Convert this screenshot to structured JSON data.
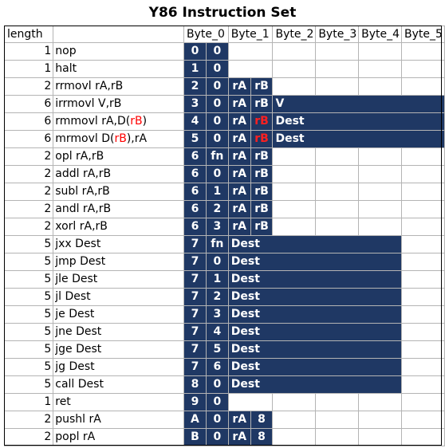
{
  "title": "Y86 Instruction Set",
  "headers": {
    "length": "length",
    "bytes": [
      "Byte_0",
      "Byte_1",
      "Byte_2",
      "Byte_3",
      "Byte_4",
      "Byte_5"
    ]
  },
  "fill_color": "#1f3864",
  "rows": [
    {
      "length": "1",
      "instr": [
        {
          "t": "nop"
        }
      ],
      "half": [
        "0",
        "0"
      ],
      "fill_until": 1
    },
    {
      "length": "1",
      "instr": [
        {
          "t": "halt"
        }
      ],
      "half": [
        "1",
        "0"
      ],
      "fill_until": 1
    },
    {
      "length": "2",
      "instr": [
        {
          "t": "rrmovl rA,rB"
        }
      ],
      "half": [
        "2",
        "0",
        "rA",
        "rB"
      ],
      "fill_until": 2
    },
    {
      "length": "6",
      "instr": [
        {
          "t": "irrmovl V,rB"
        }
      ],
      "half": [
        "3",
        "0",
        "rA",
        "rB"
      ],
      "spans": [
        {
          "text": "V",
          "cols": 4
        }
      ],
      "fill_until": 6
    },
    {
      "length": "6",
      "instr": [
        {
          "t": "rmmovl rA,D("
        },
        {
          "t": "rB",
          "red": true
        },
        {
          "t": ")"
        }
      ],
      "half": [
        "4",
        "0",
        "rA",
        "rB"
      ],
      "red_half": [
        3
      ],
      "spans": [
        {
          "text": "Dest",
          "cols": 4
        }
      ],
      "fill_until": 6
    },
    {
      "length": "6",
      "instr": [
        {
          "t": "mrmovl D("
        },
        {
          "t": "rB",
          "red": true
        },
        {
          "t": "),rA"
        }
      ],
      "half": [
        "5",
        "0",
        "rA",
        "rB"
      ],
      "red_half": [
        3
      ],
      "spans": [
        {
          "text": "Dest",
          "cols": 4
        }
      ],
      "fill_until": 6
    },
    {
      "length": "2",
      "instr": [
        {
          "t": "opl rA,rB"
        }
      ],
      "half": [
        "6",
        "fn",
        "rA",
        "rB"
      ],
      "fill_until": 2
    },
    {
      "length": "2",
      "instr": [
        {
          "t": "addl rA,rB"
        }
      ],
      "half": [
        "6",
        "0",
        "rA",
        "rB"
      ],
      "fill_until": 2
    },
    {
      "length": "2",
      "instr": [
        {
          "t": "subl rA,rB"
        }
      ],
      "half": [
        "6",
        "1",
        "rA",
        "rB"
      ],
      "fill_until": 2
    },
    {
      "length": "2",
      "instr": [
        {
          "t": "andl rA,rB"
        }
      ],
      "half": [
        "6",
        "2",
        "rA",
        "rB"
      ],
      "fill_until": 2
    },
    {
      "length": "2",
      "instr": [
        {
          "t": "xorl rA,rB"
        }
      ],
      "half": [
        "6",
        "3",
        "rA",
        "rB"
      ],
      "fill_until": 2
    },
    {
      "length": "5",
      "instr": [
        {
          "t": "jxx Dest"
        }
      ],
      "half": [
        "7",
        "fn"
      ],
      "spans": [
        {
          "text": "Dest",
          "cols": 4
        }
      ],
      "fill_until": 5
    },
    {
      "length": "5",
      "instr": [
        {
          "t": "jmp Dest"
        }
      ],
      "half": [
        "7",
        "0"
      ],
      "spans": [
        {
          "text": "Dest",
          "cols": 4
        }
      ],
      "fill_until": 5
    },
    {
      "length": "5",
      "instr": [
        {
          "t": "jle Dest"
        }
      ],
      "half": [
        "7",
        "1"
      ],
      "spans": [
        {
          "text": "Dest",
          "cols": 4
        }
      ],
      "fill_until": 5
    },
    {
      "length": "5",
      "instr": [
        {
          "t": "jl Dest"
        }
      ],
      "half": [
        "7",
        "2"
      ],
      "spans": [
        {
          "text": "Dest",
          "cols": 4
        }
      ],
      "fill_until": 5
    },
    {
      "length": "5",
      "instr": [
        {
          "t": "je Dest"
        }
      ],
      "half": [
        "7",
        "3"
      ],
      "spans": [
        {
          "text": "Dest",
          "cols": 4
        }
      ],
      "fill_until": 5
    },
    {
      "length": "5",
      "instr": [
        {
          "t": "jne Dest"
        }
      ],
      "half": [
        "7",
        "4"
      ],
      "spans": [
        {
          "text": "Dest",
          "cols": 4
        }
      ],
      "fill_until": 5
    },
    {
      "length": "5",
      "instr": [
        {
          "t": "jge Dest"
        }
      ],
      "half": [
        "7",
        "5"
      ],
      "spans": [
        {
          "text": "Dest",
          "cols": 4
        }
      ],
      "fill_until": 5
    },
    {
      "length": "5",
      "instr": [
        {
          "t": "jg Dest"
        }
      ],
      "half": [
        "7",
        "6"
      ],
      "spans": [
        {
          "text": "Dest",
          "cols": 4
        }
      ],
      "fill_until": 5
    },
    {
      "length": "5",
      "instr": [
        {
          "t": "call Dest"
        }
      ],
      "half": [
        "8",
        "0"
      ],
      "spans": [
        {
          "text": "Dest",
          "cols": 4
        }
      ],
      "fill_until": 5
    },
    {
      "length": "1",
      "instr": [
        {
          "t": "ret"
        }
      ],
      "half": [
        "9",
        "0"
      ],
      "fill_until": 1
    },
    {
      "length": "2",
      "instr": [
        {
          "t": "pushl rA"
        }
      ],
      "half": [
        "A",
        "0",
        "rA",
        "8"
      ],
      "fill_until": 2
    },
    {
      "length": "2",
      "instr": [
        {
          "t": "popl rA"
        }
      ],
      "half": [
        "B",
        "0",
        "rA",
        "8"
      ],
      "fill_until": 2
    }
  ]
}
